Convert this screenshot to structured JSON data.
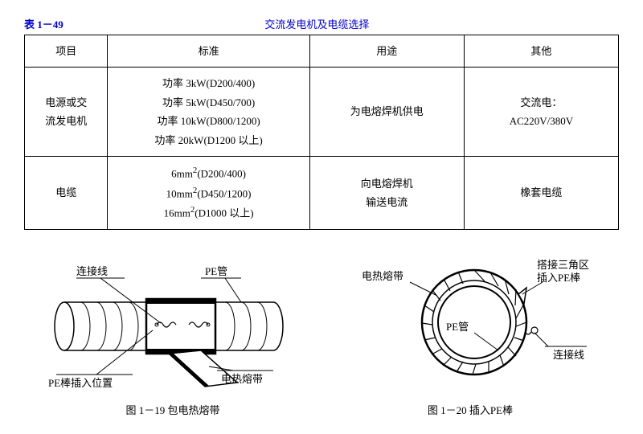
{
  "header": {
    "table_number": "表 1－49",
    "title": "交流发电机及电缆选择"
  },
  "table": {
    "columns": [
      "项目",
      "标准",
      "用途",
      "其他"
    ],
    "rows": [
      {
        "project": "电源或交\n流发电机",
        "standard": "功率 3kW(D200/400)\n功率 5kW(D450/700)\n功率 10kW(D800/1200)\n功率 20kW(D1200 以上)",
        "usage": "为电熔焊机供电",
        "other": "交流电：\nAC220V/380V"
      },
      {
        "project": "电缆",
        "standard": "6mm²(D200/400)\n10mm²(D450/1200)\n16mm²(D1000 以上)",
        "usage": "向电熔焊机\n输送电流",
        "other": "橡套电缆"
      }
    ]
  },
  "figures": {
    "fig1": {
      "caption": "图 1－19  包电热熔带",
      "labels": {
        "lianjiexian": "连接线",
        "peguan": "PE管",
        "pebang": "PE棒插入位置",
        "dianrerondai": "电热熔带"
      },
      "colors": {
        "stroke": "#000000",
        "fill_band": "#000000"
      }
    },
    "fig2": {
      "caption": "图 1－20  插入PE棒",
      "labels": {
        "dianrerondai": "电热熔带",
        "dajie": "搭接三角区\n插入PE棒",
        "peguan": "PE管",
        "lianjiexian": "连接线"
      },
      "colors": {
        "stroke": "#000000"
      }
    }
  }
}
